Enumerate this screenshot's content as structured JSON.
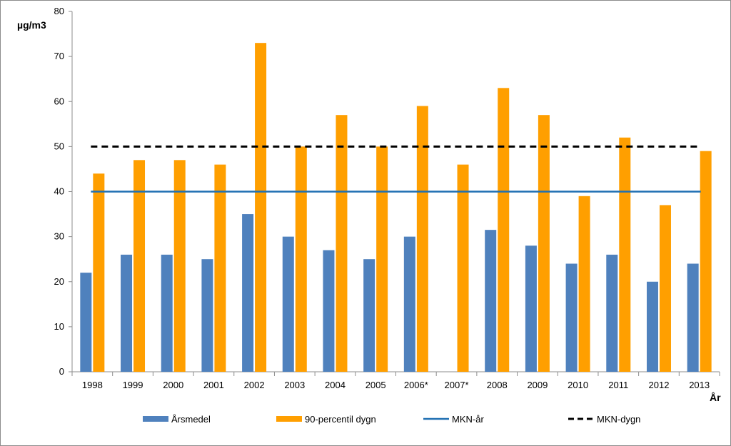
{
  "chart_data": {
    "type": "bar",
    "ylabel": "µg/m3",
    "xlabel": "År",
    "ylim": [
      0,
      80
    ],
    "yticks": [
      0,
      10,
      20,
      30,
      40,
      50,
      60,
      70,
      80
    ],
    "grid": false,
    "legend_position": "bottom",
    "categories": [
      "1998",
      "1999",
      "2000",
      "2001",
      "2002",
      "2003",
      "2004",
      "2005",
      "2006*",
      "2007*",
      "2008",
      "2009",
      "2010",
      "2011",
      "2012",
      "2013"
    ],
    "series": [
      {
        "name": "Årsmedel",
        "color": "#4f81bd",
        "values": [
          22,
          26,
          26,
          25,
          35,
          30,
          27,
          25,
          30,
          null,
          31.5,
          28,
          24,
          26,
          20,
          24
        ]
      },
      {
        "name": "90-percentil dygn",
        "color": "#ff9f00",
        "values": [
          44,
          47,
          47,
          46,
          73,
          50,
          57,
          50,
          59,
          46,
          63,
          57,
          39,
          52,
          37,
          49
        ]
      }
    ],
    "reference_lines": [
      {
        "name": "MKN-år",
        "value": 40,
        "color": "#1f6fb2",
        "style": "solid"
      },
      {
        "name": "MKN-dygn",
        "value": 50,
        "color": "#000000",
        "style": "dashed"
      }
    ]
  }
}
